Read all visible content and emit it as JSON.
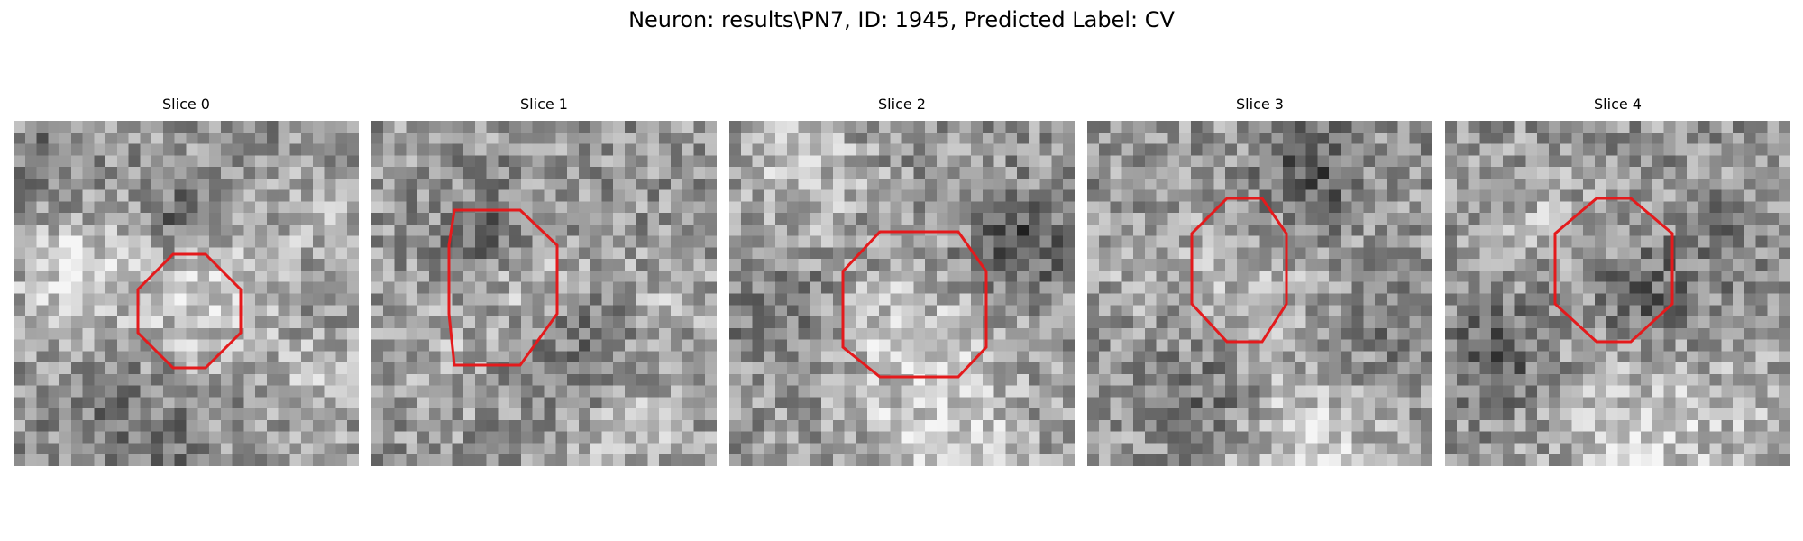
{
  "figure": {
    "title": "Neuron: results\\PN7, ID: 1945, Predicted Label: CV",
    "outline_color": "#e41a1c"
  },
  "slices": [
    {
      "title": "Slice 0"
    },
    {
      "title": "Slice 1"
    },
    {
      "title": "Slice 2"
    },
    {
      "title": "Slice 3"
    },
    {
      "title": "Slice 4"
    }
  ]
}
